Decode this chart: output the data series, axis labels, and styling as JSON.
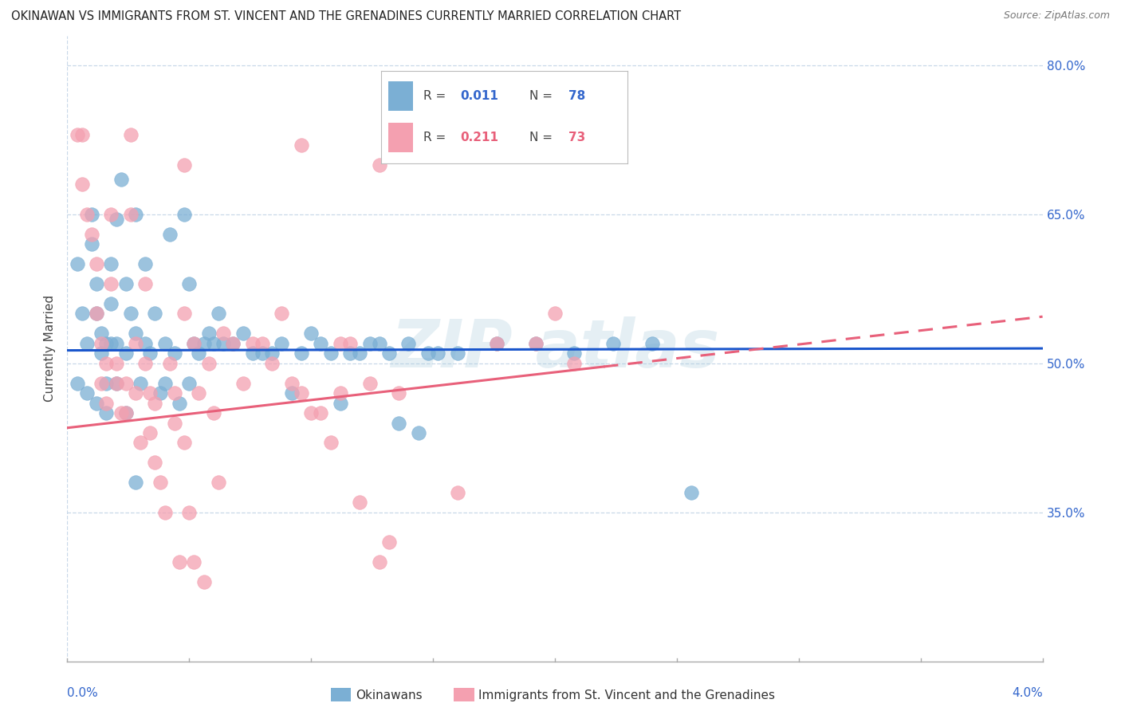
{
  "title": "OKINAWAN VS IMMIGRANTS FROM ST. VINCENT AND THE GRENADINES CURRENTLY MARRIED CORRELATION CHART",
  "source": "Source: ZipAtlas.com",
  "ylabel": "Currently Married",
  "blue_color": "#7BAFD4",
  "pink_color": "#F4A0B0",
  "line_blue": "#1A56CC",
  "line_pink": "#E8607A",
  "x_min": 0.0,
  "x_max": 4.0,
  "y_min": 20.0,
  "y_max": 83.0,
  "blue_trend_intercept": 51.3,
  "blue_trend_slope": 0.05,
  "pink_trend_intercept": 43.5,
  "pink_trend_slope": 2.8,
  "pink_dash_start": 2.2,
  "blue_points": [
    [
      0.04,
      60.0
    ],
    [
      0.06,
      55.0
    ],
    [
      0.08,
      52.0
    ],
    [
      0.1,
      65.0
    ],
    [
      0.1,
      62.0
    ],
    [
      0.12,
      55.0
    ],
    [
      0.12,
      58.0
    ],
    [
      0.14,
      51.0
    ],
    [
      0.14,
      53.0
    ],
    [
      0.16,
      48.0
    ],
    [
      0.16,
      52.0
    ],
    [
      0.18,
      60.0
    ],
    [
      0.18,
      56.0
    ],
    [
      0.2,
      64.5
    ],
    [
      0.2,
      52.0
    ],
    [
      0.22,
      68.5
    ],
    [
      0.24,
      51.0
    ],
    [
      0.24,
      58.0
    ],
    [
      0.26,
      55.0
    ],
    [
      0.28,
      65.0
    ],
    [
      0.28,
      53.0
    ],
    [
      0.3,
      48.0
    ],
    [
      0.32,
      60.0
    ],
    [
      0.32,
      52.0
    ],
    [
      0.34,
      51.0
    ],
    [
      0.36,
      55.0
    ],
    [
      0.38,
      47.0
    ],
    [
      0.4,
      52.0
    ],
    [
      0.4,
      48.0
    ],
    [
      0.42,
      63.0
    ],
    [
      0.44,
      51.0
    ],
    [
      0.46,
      46.0
    ],
    [
      0.48,
      65.0
    ],
    [
      0.5,
      58.0
    ],
    [
      0.52,
      52.0
    ],
    [
      0.54,
      51.0
    ],
    [
      0.56,
      52.0
    ],
    [
      0.58,
      53.0
    ],
    [
      0.6,
      52.0
    ],
    [
      0.62,
      55.0
    ],
    [
      0.64,
      52.0
    ],
    [
      0.68,
      52.0
    ],
    [
      0.72,
      53.0
    ],
    [
      0.76,
      51.0
    ],
    [
      0.8,
      51.0
    ],
    [
      0.84,
      51.0
    ],
    [
      0.88,
      52.0
    ],
    [
      0.92,
      47.0
    ],
    [
      0.96,
      51.0
    ],
    [
      1.0,
      53.0
    ],
    [
      1.04,
      52.0
    ],
    [
      1.08,
      51.0
    ],
    [
      1.12,
      46.0
    ],
    [
      1.16,
      51.0
    ],
    [
      1.2,
      51.0
    ],
    [
      1.24,
      52.0
    ],
    [
      1.28,
      52.0
    ],
    [
      1.32,
      51.0
    ],
    [
      1.36,
      44.0
    ],
    [
      1.4,
      52.0
    ],
    [
      1.44,
      43.0
    ],
    [
      1.48,
      51.0
    ],
    [
      1.52,
      51.0
    ],
    [
      1.6,
      51.0
    ],
    [
      1.76,
      52.0
    ],
    [
      1.92,
      52.0
    ],
    [
      2.08,
      51.0
    ],
    [
      2.24,
      52.0
    ],
    [
      2.4,
      52.0
    ],
    [
      2.56,
      37.0
    ],
    [
      0.04,
      48.0
    ],
    [
      0.08,
      47.0
    ],
    [
      0.12,
      46.0
    ],
    [
      0.16,
      45.0
    ],
    [
      0.18,
      52.0
    ],
    [
      0.2,
      48.0
    ],
    [
      0.24,
      45.0
    ],
    [
      0.28,
      38.0
    ],
    [
      0.5,
      48.0
    ]
  ],
  "pink_points": [
    [
      0.04,
      73.0
    ],
    [
      0.06,
      68.0
    ],
    [
      0.08,
      65.0
    ],
    [
      0.1,
      63.0
    ],
    [
      0.12,
      60.0
    ],
    [
      0.12,
      55.0
    ],
    [
      0.14,
      52.0
    ],
    [
      0.14,
      48.0
    ],
    [
      0.16,
      50.0
    ],
    [
      0.16,
      46.0
    ],
    [
      0.18,
      65.0
    ],
    [
      0.18,
      58.0
    ],
    [
      0.2,
      50.0
    ],
    [
      0.2,
      48.0
    ],
    [
      0.22,
      45.0
    ],
    [
      0.24,
      48.0
    ],
    [
      0.24,
      45.0
    ],
    [
      0.26,
      65.0
    ],
    [
      0.28,
      52.0
    ],
    [
      0.28,
      47.0
    ],
    [
      0.3,
      42.0
    ],
    [
      0.32,
      58.0
    ],
    [
      0.32,
      50.0
    ],
    [
      0.34,
      47.0
    ],
    [
      0.34,
      43.0
    ],
    [
      0.36,
      46.0
    ],
    [
      0.36,
      40.0
    ],
    [
      0.38,
      38.0
    ],
    [
      0.4,
      35.0
    ],
    [
      0.42,
      50.0
    ],
    [
      0.44,
      47.0
    ],
    [
      0.44,
      44.0
    ],
    [
      0.46,
      30.0
    ],
    [
      0.48,
      55.0
    ],
    [
      0.48,
      42.0
    ],
    [
      0.5,
      35.0
    ],
    [
      0.52,
      52.0
    ],
    [
      0.52,
      30.0
    ],
    [
      0.54,
      47.0
    ],
    [
      0.56,
      28.0
    ],
    [
      0.58,
      50.0
    ],
    [
      0.6,
      45.0
    ],
    [
      0.62,
      38.0
    ],
    [
      0.64,
      53.0
    ],
    [
      0.68,
      52.0
    ],
    [
      0.72,
      48.0
    ],
    [
      0.76,
      52.0
    ],
    [
      0.8,
      52.0
    ],
    [
      0.84,
      50.0
    ],
    [
      0.88,
      55.0
    ],
    [
      0.92,
      48.0
    ],
    [
      0.96,
      47.0
    ],
    [
      1.0,
      45.0
    ],
    [
      1.04,
      45.0
    ],
    [
      1.08,
      42.0
    ],
    [
      1.12,
      52.0
    ],
    [
      1.12,
      47.0
    ],
    [
      1.16,
      52.0
    ],
    [
      1.2,
      36.0
    ],
    [
      1.24,
      48.0
    ],
    [
      1.28,
      30.0
    ],
    [
      1.32,
      32.0
    ],
    [
      1.36,
      47.0
    ],
    [
      1.6,
      37.0
    ],
    [
      1.76,
      52.0
    ],
    [
      1.92,
      52.0
    ],
    [
      2.0,
      55.0
    ],
    [
      2.08,
      50.0
    ],
    [
      0.06,
      73.0
    ],
    [
      0.26,
      73.0
    ],
    [
      0.48,
      70.0
    ],
    [
      0.96,
      72.0
    ],
    [
      1.28,
      70.0
    ]
  ]
}
